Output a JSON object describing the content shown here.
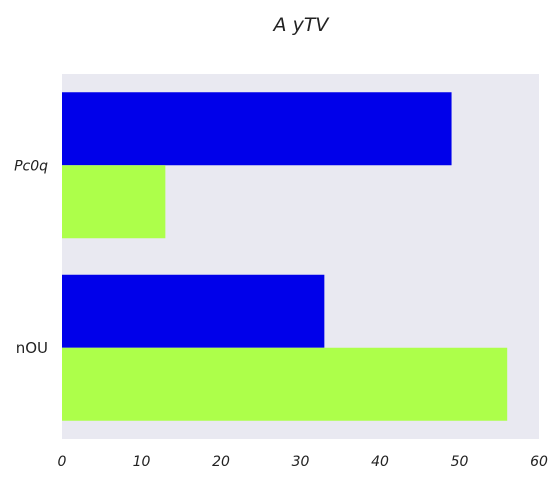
{
  "chart_data": {
    "type": "bar",
    "orientation": "horizontal",
    "title": "A  yTV",
    "categories": [
      "Pc0q",
      "nOU"
    ],
    "category_label_italic": [
      true,
      false
    ],
    "series": [
      {
        "values": [
          49,
          33
        ],
        "color": "#0000ea"
      },
      {
        "values": [
          13,
          56
        ],
        "color": "#adff4a"
      }
    ],
    "xlim": [
      0,
      60
    ],
    "xticks": [
      "0",
      "10",
      "20",
      "30",
      "40",
      "50",
      "60"
    ],
    "xlabel": "",
    "ylabel": "",
    "grid": false,
    "legend": "none",
    "plot_background": "#e9e9f1"
  }
}
